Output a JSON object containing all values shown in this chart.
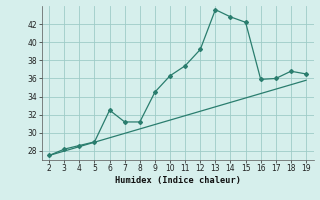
{
  "xlabel": "Humidex (Indice chaleur)",
  "curve_x": [
    2,
    3,
    4,
    5,
    6,
    7,
    8,
    9,
    10,
    11,
    12,
    13,
    14,
    15,
    16,
    17,
    18,
    19
  ],
  "curve_y": [
    27.5,
    28.2,
    28.6,
    29.0,
    32.5,
    31.2,
    31.2,
    34.5,
    36.3,
    37.4,
    39.2,
    43.6,
    42.8,
    42.2,
    35.9,
    36.0,
    36.8,
    36.5
  ],
  "line2_x": [
    2,
    19
  ],
  "line2_y": [
    27.5,
    35.8
  ],
  "color": "#2a7d6e",
  "bg_color": "#d6efec",
  "grid_color": "#9eccc7",
  "ylim": [
    27,
    44
  ],
  "xlim": [
    1.5,
    19.5
  ],
  "yticks": [
    28,
    30,
    32,
    34,
    36,
    38,
    40,
    42
  ],
  "xticks": [
    2,
    3,
    4,
    5,
    6,
    7,
    8,
    9,
    10,
    11,
    12,
    13,
    14,
    15,
    16,
    17,
    18,
    19
  ]
}
